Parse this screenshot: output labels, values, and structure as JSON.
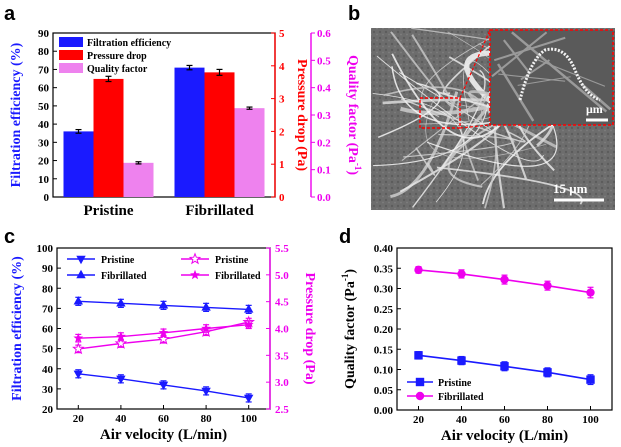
{
  "figure": {
    "panels": [
      "a",
      "b",
      "c",
      "d"
    ]
  },
  "chart_data": [
    {
      "panel": "a",
      "type": "bar",
      "categories": [
        "Pristine",
        "Fibrillated"
      ],
      "series": [
        {
          "name": "Filtration efficiency",
          "axis": "left",
          "color": "#1a1aff",
          "values": [
            36,
            71
          ],
          "errors": [
            1.0,
            1.2
          ]
        },
        {
          "name": "Pressure drop",
          "axis": "right1",
          "color": "#ff0000",
          "values": [
            3.6,
            3.8
          ],
          "errors": [
            0.08,
            0.09
          ]
        },
        {
          "name": "Quality factor",
          "axis": "right2",
          "color": "#ee82ee",
          "values": [
            0.125,
            0.325
          ],
          "errors": [
            0.004,
            0.004
          ]
        }
      ],
      "axes": {
        "left": {
          "label": "Filtration efficiency (%)",
          "ylim": [
            0,
            90
          ],
          "ticks": [
            0,
            10,
            20,
            30,
            40,
            50,
            60,
            70,
            80,
            90
          ],
          "color": "#1a1aff"
        },
        "right1": {
          "label": "Pressure drop (Pa)",
          "ylim": [
            0,
            5
          ],
          "ticks": [
            0,
            1,
            2,
            3,
            4,
            5
          ],
          "color": "#ff0000"
        },
        "right2": {
          "label": "Quality factor (Pa",
          "label_sup": "-1",
          "label_end": ")",
          "ylim": [
            0,
            0.6
          ],
          "ticks": [
            "0.0",
            "0.1",
            "0.2",
            "0.3",
            "0.4",
            "0.5",
            "0.6"
          ],
          "color": "#ee00ee"
        }
      },
      "legend_position": "top-left"
    },
    {
      "panel": "c",
      "type": "line",
      "x": [
        20,
        40,
        60,
        80,
        100
      ],
      "xlabel": "Air velocity (L/min)",
      "xticks": [
        20,
        40,
        60,
        80,
        100
      ],
      "series": [
        {
          "name": "Pristine",
          "axis": "left",
          "color": "#1a1aff",
          "marker": "down-triangle",
          "values": [
            37.5,
            35,
            32,
            29,
            25.5
          ],
          "errors": [
            2,
            2,
            2,
            2,
            2
          ]
        },
        {
          "name": "Fibrillated",
          "axis": "left",
          "color": "#1a1aff",
          "marker": "up-triangle",
          "values": [
            73.5,
            72.5,
            71.5,
            70.5,
            69.5
          ],
          "errors": [
            2,
            2,
            2,
            2,
            2
          ]
        },
        {
          "name": "Pristine",
          "axis": "right",
          "color": "#ee00ee",
          "marker": "open-star",
          "values": [
            3.62,
            3.72,
            3.8,
            3.94,
            4.12
          ],
          "errors": [
            0.07,
            0.07,
            0.07,
            0.07,
            0.07
          ]
        },
        {
          "name": "Fibrillated",
          "axis": "right",
          "color": "#ee00ee",
          "marker": "star",
          "values": [
            3.82,
            3.85,
            3.92,
            4.0,
            4.07
          ],
          "errors": [
            0.07,
            0.07,
            0.07,
            0.07,
            0.07
          ]
        }
      ],
      "axes": {
        "left": {
          "label": "Filtration efficiency (%)",
          "ylim": [
            20,
            100
          ],
          "ticks": [
            20,
            30,
            40,
            50,
            60,
            70,
            80,
            90,
            100
          ],
          "color": "#1a1aff"
        },
        "right": {
          "label": "Pressure drop (Pa)",
          "ylim": [
            2.5,
            5.5
          ],
          "ticks": [
            "2.5",
            "3.0",
            "3.5",
            "4.0",
            "4.5",
            "5.0",
            "5.5"
          ],
          "color": "#ee00ee"
        }
      },
      "legend_position": "top"
    },
    {
      "panel": "d",
      "type": "line",
      "x": [
        20,
        40,
        60,
        80,
        100
      ],
      "xlabel": "Air velocity (L/min)",
      "xticks": [
        20,
        40,
        60,
        80,
        100
      ],
      "ylabel": "Quality factor (Pa",
      "ylabel_sup": "-1",
      "ylabel_end": ")",
      "ylim": [
        0,
        0.4
      ],
      "yticks": [
        "0.00",
        "0.05",
        "0.10",
        "0.15",
        "0.20",
        "0.25",
        "0.30",
        "0.35",
        "0.40"
      ],
      "series": [
        {
          "name": "Pristine",
          "color": "#1a1aff",
          "marker": "square",
          "values": [
            0.135,
            0.122,
            0.108,
            0.093,
            0.075
          ],
          "errors": [
            0.009,
            0.01,
            0.011,
            0.011,
            0.012
          ]
        },
        {
          "name": "Fibrillated",
          "color": "#ee00ee",
          "marker": "circle",
          "values": [
            0.346,
            0.336,
            0.322,
            0.307,
            0.29
          ],
          "errors": [
            0.008,
            0.01,
            0.011,
            0.011,
            0.013
          ]
        }
      ],
      "legend_position": "bottom-left"
    }
  ],
  "micrograph": {
    "panel": "b",
    "scale_main": "15 μm",
    "scale_inset": "μm"
  }
}
